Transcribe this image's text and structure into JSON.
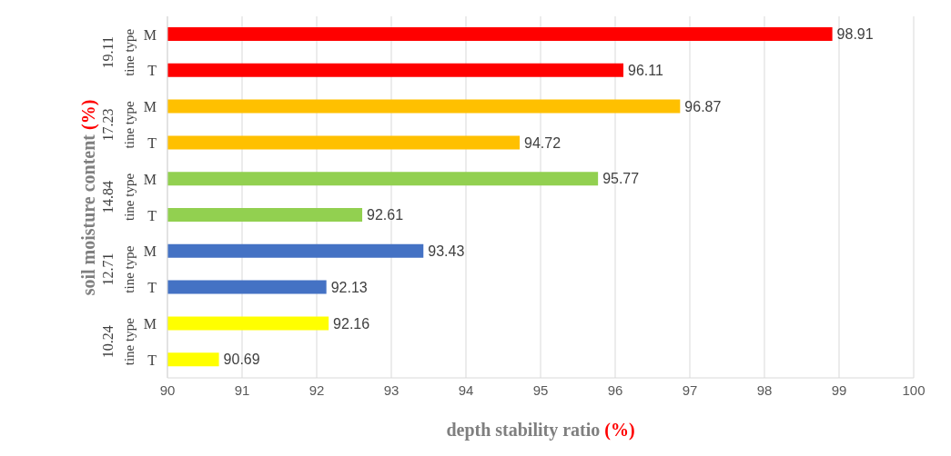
{
  "chart_data": {
    "type": "bar",
    "orientation": "horizontal",
    "xlabel": "depth stability ratio (%)",
    "ylabel": "soil moisture content (%)",
    "categories": [
      "M",
      "T",
      "M",
      "T",
      "M",
      "T",
      "M",
      "T",
      "M",
      "T"
    ],
    "values": [
      98.91,
      96.11,
      96.87,
      94.72,
      95.77,
      92.61,
      93.43,
      92.13,
      92.16,
      90.69
    ],
    "colors": [
      "#ff0000",
      "#ff0000",
      "#ffc000",
      "#ffc000",
      "#92d050",
      "#92d050",
      "#4472c4",
      "#4472c4",
      "#ffff00",
      "#ffff00"
    ],
    "xlim": [
      90,
      100
    ],
    "xticks": [
      90,
      91,
      92,
      93,
      94,
      95,
      96,
      97,
      98,
      99,
      100
    ],
    "grid": "x",
    "data_labels": true,
    "annotations": [
      "19.11",
      "tine type",
      "17.23",
      "tine type",
      "14.84",
      "tine type",
      "12.71",
      "tine type",
      "10.24",
      "tine type"
    ]
  }
}
